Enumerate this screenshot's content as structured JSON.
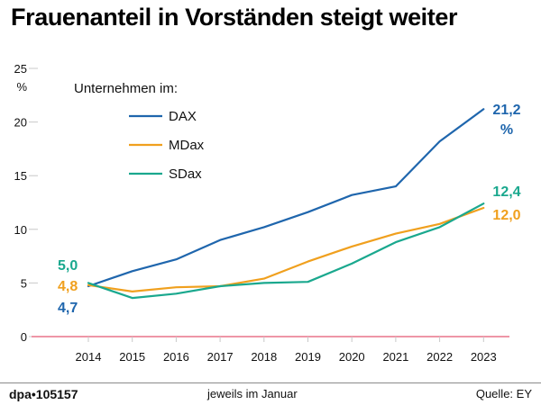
{
  "header": {
    "title": "Frauenanteil in Vorständen steigt weiter"
  },
  "footer": {
    "brand": "dpa•105157",
    "note": "jeweils im Januar",
    "source": "Quelle: EY"
  },
  "colors": {
    "DAX": "#1f66ad",
    "MDax": "#f0a01e",
    "SDax": "#1aa88e",
    "zero_line": "#e8748a",
    "grid": "#c8c8c8",
    "text": "#111111"
  },
  "chart_data": {
    "type": "line",
    "title": "Frauenanteil in Vorständen steigt weiter",
    "ylabel": "%",
    "x": [
      "2014",
      "2015",
      "2016",
      "2017",
      "2018",
      "2019",
      "2020",
      "2021",
      "2022",
      "2023"
    ],
    "ylim": [
      0,
      25
    ],
    "yticks": [
      "0",
      "5",
      "10",
      "15",
      "20",
      "25"
    ],
    "grid": false,
    "legend": {
      "title": "Unternehmen im:",
      "placement": "top-left",
      "entries": [
        "DAX",
        "MDax",
        "SDax"
      ]
    },
    "series": [
      {
        "name": "DAX",
        "values": [
          4.7,
          6.1,
          7.2,
          9.0,
          10.2,
          11.6,
          13.2,
          14.0,
          18.2,
          21.2
        ]
      },
      {
        "name": "MDax",
        "values": [
          4.8,
          4.2,
          4.6,
          4.7,
          5.4,
          7.0,
          8.4,
          9.6,
          10.5,
          12.0
        ]
      },
      {
        "name": "SDax",
        "values": [
          5.0,
          3.6,
          4.0,
          4.7,
          5.0,
          5.1,
          6.8,
          8.8,
          10.2,
          12.4
        ]
      }
    ],
    "annotations": [
      {
        "series": "DAX",
        "position": "start",
        "text": "4,7"
      },
      {
        "series": "MDax",
        "position": "start",
        "text": "4,8"
      },
      {
        "series": "SDax",
        "position": "start",
        "text": "5,0"
      },
      {
        "series": "DAX",
        "position": "end",
        "text": "21,2",
        "unit": "%"
      },
      {
        "series": "SDax",
        "position": "end",
        "text": "12,4"
      },
      {
        "series": "MDax",
        "position": "end",
        "text": "12,0"
      }
    ]
  }
}
